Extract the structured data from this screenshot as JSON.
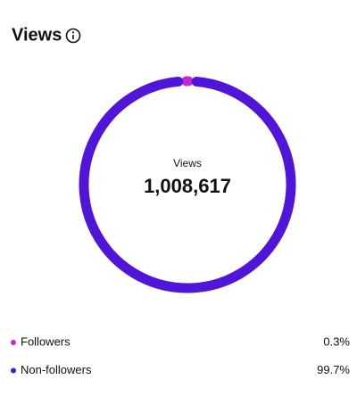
{
  "chart_data": {
    "type": "donut",
    "title": "Views",
    "center_label": "Views",
    "center_value": "1,008,617",
    "categories": [
      "Followers",
      "Non-followers"
    ],
    "values": [
      0.3,
      99.7
    ],
    "value_labels": [
      "0.3%",
      "99.7%"
    ],
    "colors": [
      "#c22ad0",
      "#4f16d9"
    ]
  }
}
